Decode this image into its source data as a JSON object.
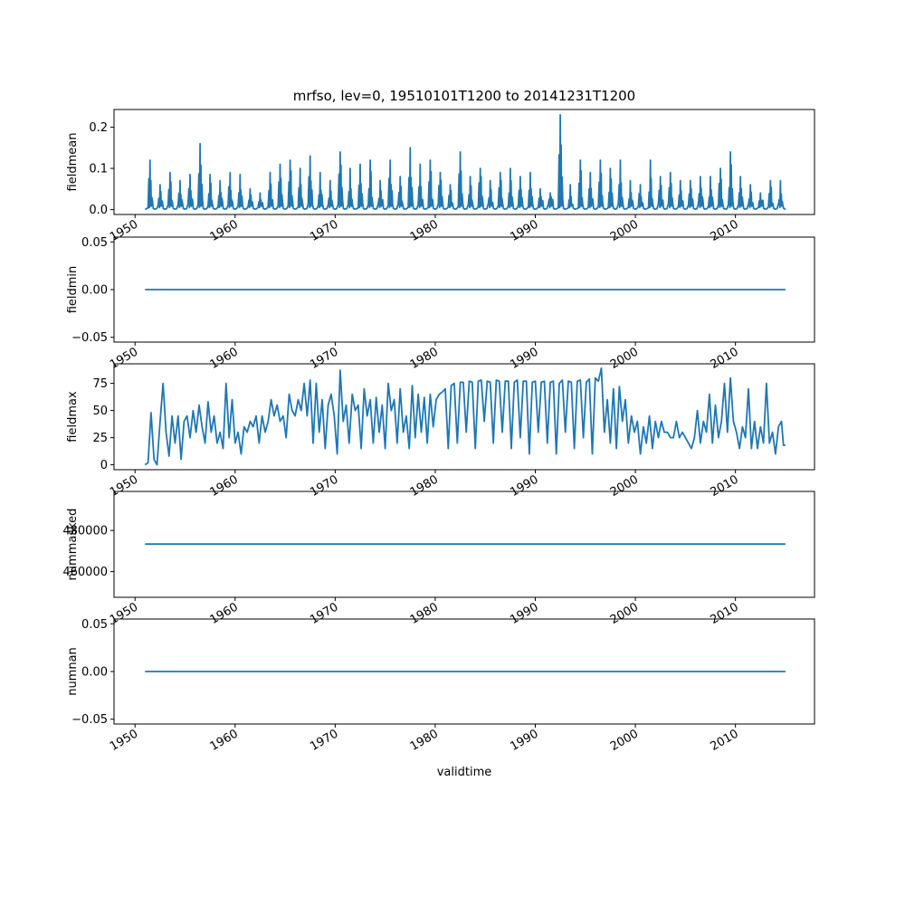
{
  "chart_data": {
    "title": "mrfso, lev=0, 19510101T1200 to 20141231T1200",
    "xlabel": "validtime",
    "line_color": "#1f77b4",
    "x_ticks": [
      1950,
      1960,
      1970,
      1980,
      1990,
      2000,
      2010
    ],
    "x_tick_labels": [
      "1950",
      "1960",
      "1970",
      "1980",
      "1990",
      "2000",
      "2010"
    ],
    "xlim": [
      1947.9,
      2017.9
    ],
    "x_range": [
      1951.0,
      2015.0
    ],
    "subplots": [
      {
        "type": "line",
        "name": "fieldmean",
        "ylabel": "fieldmean",
        "ylim": [
          -0.012,
          0.243
        ],
        "yticks": [
          0.0,
          0.1,
          0.2
        ],
        "yticklabels": [
          "0.0",
          "0.1",
          "0.2"
        ],
        "kind": "seasonal_spikes",
        "peaks": [
          [
            1951.5,
            0.12
          ],
          [
            1952.5,
            0.06
          ],
          [
            1953.5,
            0.09
          ],
          [
            1954.5,
            0.07
          ],
          [
            1955.5,
            0.085
          ],
          [
            1956.5,
            0.16
          ],
          [
            1957.5,
            0.085
          ],
          [
            1958.5,
            0.07
          ],
          [
            1959.5,
            0.09
          ],
          [
            1960.5,
            0.085
          ],
          [
            1961.5,
            0.05
          ],
          [
            1962.5,
            0.04
          ],
          [
            1963.5,
            0.09
          ],
          [
            1964.5,
            0.11
          ],
          [
            1965.5,
            0.12
          ],
          [
            1966.5,
            0.1
          ],
          [
            1967.5,
            0.13
          ],
          [
            1968.5,
            0.09
          ],
          [
            1969.5,
            0.07
          ],
          [
            1970.5,
            0.14
          ],
          [
            1971.5,
            0.1
          ],
          [
            1972.5,
            0.11
          ],
          [
            1973.5,
            0.12
          ],
          [
            1974.5,
            0.07
          ],
          [
            1975.5,
            0.12
          ],
          [
            1976.5,
            0.08
          ],
          [
            1977.5,
            0.15
          ],
          [
            1978.5,
            0.11
          ],
          [
            1979.5,
            0.12
          ],
          [
            1980.5,
            0.09
          ],
          [
            1981.5,
            0.06
          ],
          [
            1982.5,
            0.14
          ],
          [
            1983.5,
            0.08
          ],
          [
            1984.5,
            0.1
          ],
          [
            1985.5,
            0.07
          ],
          [
            1986.5,
            0.09
          ],
          [
            1987.5,
            0.1
          ],
          [
            1988.5,
            0.08
          ],
          [
            1989.5,
            0.09
          ],
          [
            1990.5,
            0.05
          ],
          [
            1991.5,
            0.04
          ],
          [
            1992.5,
            0.23
          ],
          [
            1993.5,
            0.06
          ],
          [
            1994.5,
            0.12
          ],
          [
            1995.5,
            0.09
          ],
          [
            1996.5,
            0.12
          ],
          [
            1997.5,
            0.1
          ],
          [
            1998.5,
            0.12
          ],
          [
            1999.5,
            0.07
          ],
          [
            2000.5,
            0.06
          ],
          [
            2001.5,
            0.12
          ],
          [
            2002.5,
            0.08
          ],
          [
            2003.5,
            0.09
          ],
          [
            2004.5,
            0.07
          ],
          [
            2005.5,
            0.07
          ],
          [
            2006.5,
            0.08
          ],
          [
            2007.5,
            0.08
          ],
          [
            2008.5,
            0.1
          ],
          [
            2009.5,
            0.14
          ],
          [
            2010.5,
            0.08
          ],
          [
            2011.5,
            0.06
          ],
          [
            2012.5,
            0.04
          ],
          [
            2013.5,
            0.07
          ],
          [
            2014.5,
            0.07
          ]
        ]
      },
      {
        "type": "line",
        "name": "fieldmin",
        "ylabel": "fieldmin",
        "ylim": [
          -0.055,
          0.055
        ],
        "yticks": [
          -0.05,
          0.0,
          0.05
        ],
        "yticklabels": [
          "−0.05",
          "0.00",
          "0.05"
        ],
        "kind": "constant",
        "value": 0.0
      },
      {
        "type": "line",
        "name": "fieldmax",
        "ylabel": "fieldmax",
        "ylim": [
          -4.5,
          93
        ],
        "yticks": [
          0,
          25,
          50,
          75
        ],
        "yticklabels": [
          "0",
          "25",
          "50",
          "75"
        ],
        "kind": "noisy",
        "points": [
          [
            1951.0,
            0
          ],
          [
            1951.3,
            2
          ],
          [
            1951.6,
            48
          ],
          [
            1951.9,
            5
          ],
          [
            1952.2,
            0
          ],
          [
            1952.5,
            40
          ],
          [
            1952.8,
            75
          ],
          [
            1953.1,
            30
          ],
          [
            1953.4,
            8
          ],
          [
            1953.7,
            45
          ],
          [
            1954.0,
            20
          ],
          [
            1954.3,
            45
          ],
          [
            1954.6,
            5
          ],
          [
            1954.9,
            40
          ],
          [
            1955.2,
            45
          ],
          [
            1955.5,
            25
          ],
          [
            1955.8,
            50
          ],
          [
            1956.1,
            30
          ],
          [
            1956.4,
            55
          ],
          [
            1956.7,
            35
          ],
          [
            1957.0,
            20
          ],
          [
            1957.3,
            58
          ],
          [
            1957.6,
            30
          ],
          [
            1957.9,
            45
          ],
          [
            1958.2,
            20
          ],
          [
            1958.5,
            30
          ],
          [
            1958.8,
            15
          ],
          [
            1959.1,
            75
          ],
          [
            1959.4,
            25
          ],
          [
            1959.7,
            60
          ],
          [
            1960.0,
            20
          ],
          [
            1960.3,
            30
          ],
          [
            1960.6,
            10
          ],
          [
            1960.9,
            35
          ],
          [
            1961.2,
            30
          ],
          [
            1961.5,
            40
          ],
          [
            1961.8,
            35
          ],
          [
            1962.1,
            45
          ],
          [
            1962.4,
            20
          ],
          [
            1962.7,
            45
          ],
          [
            1963.0,
            30
          ],
          [
            1963.3,
            40
          ],
          [
            1963.6,
            60
          ],
          [
            1963.9,
            45
          ],
          [
            1964.2,
            55
          ],
          [
            1964.5,
            40
          ],
          [
            1964.8,
            45
          ],
          [
            1965.1,
            25
          ],
          [
            1965.4,
            65
          ],
          [
            1965.7,
            50
          ],
          [
            1966.0,
            45
          ],
          [
            1966.3,
            60
          ],
          [
            1966.6,
            50
          ],
          [
            1966.9,
            75
          ],
          [
            1967.2,
            45
          ],
          [
            1967.5,
            78
          ],
          [
            1967.8,
            20
          ],
          [
            1968.1,
            75
          ],
          [
            1968.4,
            30
          ],
          [
            1968.7,
            60
          ],
          [
            1969.0,
            15
          ],
          [
            1969.3,
            55
          ],
          [
            1969.6,
            65
          ],
          [
            1969.9,
            45
          ],
          [
            1970.2,
            10
          ],
          [
            1970.5,
            87
          ],
          [
            1970.8,
            40
          ],
          [
            1971.1,
            55
          ],
          [
            1971.4,
            20
          ],
          [
            1971.7,
            65
          ],
          [
            1972.0,
            50
          ],
          [
            1972.3,
            55
          ],
          [
            1972.6,
            15
          ],
          [
            1972.9,
            70
          ],
          [
            1973.2,
            45
          ],
          [
            1973.5,
            60
          ],
          [
            1973.8,
            20
          ],
          [
            1974.1,
            62
          ],
          [
            1974.4,
            30
          ],
          [
            1974.7,
            55
          ],
          [
            1975.0,
            15
          ],
          [
            1975.3,
            75
          ],
          [
            1975.6,
            50
          ],
          [
            1975.9,
            60
          ],
          [
            1976.2,
            20
          ],
          [
            1976.5,
            70
          ],
          [
            1976.8,
            30
          ],
          [
            1977.1,
            45
          ],
          [
            1977.4,
            15
          ],
          [
            1977.7,
            73
          ],
          [
            1978.0,
            25
          ],
          [
            1978.3,
            65
          ],
          [
            1978.6,
            30
          ],
          [
            1978.9,
            62
          ],
          [
            1979.2,
            20
          ],
          [
            1979.5,
            65
          ],
          [
            1979.8,
            35
          ],
          [
            1980.1,
            60
          ],
          [
            1980.4,
            65
          ],
          [
            1980.7,
            67
          ],
          [
            1981.0,
            70
          ],
          [
            1981.3,
            15
          ],
          [
            1981.6,
            73
          ],
          [
            1981.9,
            75
          ],
          [
            1982.2,
            20
          ],
          [
            1982.5,
            76
          ],
          [
            1982.8,
            76
          ],
          [
            1983.1,
            30
          ],
          [
            1983.4,
            77
          ],
          [
            1983.7,
            76
          ],
          [
            1984.0,
            15
          ],
          [
            1984.3,
            77
          ],
          [
            1984.6,
            78
          ],
          [
            1984.9,
            40
          ],
          [
            1985.2,
            77
          ],
          [
            1985.5,
            76
          ],
          [
            1985.8,
            20
          ],
          [
            1986.1,
            78
          ],
          [
            1986.4,
            77
          ],
          [
            1986.7,
            30
          ],
          [
            1987.0,
            77
          ],
          [
            1987.3,
            77
          ],
          [
            1987.6,
            15
          ],
          [
            1987.9,
            76
          ],
          [
            1988.2,
            78
          ],
          [
            1988.5,
            25
          ],
          [
            1988.8,
            77
          ],
          [
            1989.1,
            77
          ],
          [
            1989.4,
            10
          ],
          [
            1989.7,
            76
          ],
          [
            1990.0,
            77
          ],
          [
            1990.3,
            30
          ],
          [
            1990.6,
            76
          ],
          [
            1990.9,
            77
          ],
          [
            1991.2,
            20
          ],
          [
            1991.5,
            76
          ],
          [
            1991.8,
            77
          ],
          [
            1992.1,
            10
          ],
          [
            1992.4,
            75
          ],
          [
            1992.7,
            78
          ],
          [
            1993.0,
            30
          ],
          [
            1993.3,
            77
          ],
          [
            1993.6,
            76
          ],
          [
            1993.9,
            15
          ],
          [
            1994.2,
            77
          ],
          [
            1994.5,
            78
          ],
          [
            1994.8,
            25
          ],
          [
            1995.1,
            76
          ],
          [
            1995.4,
            79
          ],
          [
            1995.7,
            10
          ],
          [
            1996.0,
            80
          ],
          [
            1996.3,
            77
          ],
          [
            1996.6,
            89
          ],
          [
            1996.9,
            30
          ],
          [
            1997.2,
            60
          ],
          [
            1997.5,
            20
          ],
          [
            1997.8,
            70
          ],
          [
            1998.1,
            15
          ],
          [
            1998.4,
            72
          ],
          [
            1998.7,
            40
          ],
          [
            1999.0,
            60
          ],
          [
            1999.3,
            20
          ],
          [
            1999.6,
            45
          ],
          [
            1999.9,
            30
          ],
          [
            2000.2,
            40
          ],
          [
            2000.5,
            10
          ],
          [
            2000.8,
            35
          ],
          [
            2001.1,
            20
          ],
          [
            2001.4,
            45
          ],
          [
            2001.7,
            15
          ],
          [
            2002.0,
            40
          ],
          [
            2002.3,
            25
          ],
          [
            2002.6,
            40
          ],
          [
            2002.9,
            30
          ],
          [
            2003.2,
            30
          ],
          [
            2003.5,
            25
          ],
          [
            2003.8,
            25
          ],
          [
            2004.1,
            40
          ],
          [
            2004.4,
            25
          ],
          [
            2004.7,
            30
          ],
          [
            2005.0,
            25
          ],
          [
            2005.3,
            20
          ],
          [
            2005.6,
            15
          ],
          [
            2005.9,
            25
          ],
          [
            2006.2,
            50
          ],
          [
            2006.5,
            20
          ],
          [
            2006.8,
            40
          ],
          [
            2007.1,
            30
          ],
          [
            2007.4,
            65
          ],
          [
            2007.7,
            20
          ],
          [
            2008.0,
            55
          ],
          [
            2008.3,
            25
          ],
          [
            2008.6,
            40
          ],
          [
            2008.9,
            75
          ],
          [
            2009.2,
            30
          ],
          [
            2009.5,
            80
          ],
          [
            2009.8,
            40
          ],
          [
            2010.1,
            30
          ],
          [
            2010.4,
            15
          ],
          [
            2010.7,
            35
          ],
          [
            2011.0,
            25
          ],
          [
            2011.3,
            70
          ],
          [
            2011.6,
            15
          ],
          [
            2011.9,
            40
          ],
          [
            2012.2,
            15
          ],
          [
            2012.5,
            35
          ],
          [
            2012.8,
            20
          ],
          [
            2013.1,
            75
          ],
          [
            2013.4,
            20
          ],
          [
            2013.7,
            30
          ],
          [
            2014.0,
            10
          ],
          [
            2014.3,
            35
          ],
          [
            2014.6,
            40
          ],
          [
            2014.8,
            18
          ],
          [
            2015.0,
            18
          ]
        ]
      },
      {
        "type": "line",
        "name": "nummasked",
        "ylabel": "nummasked",
        "ylim": [
          447500,
          499000
        ],
        "yticks": [
          460000,
          480000
        ],
        "yticklabels": [
          "460000",
          "480000"
        ],
        "kind": "constant",
        "value": 473400
      },
      {
        "type": "line",
        "name": "numnan",
        "ylabel": "numnan",
        "ylim": [
          -0.055,
          0.055
        ],
        "yticks": [
          -0.05,
          0.0,
          0.05
        ],
        "yticklabels": [
          "−0.05",
          "0.00",
          "0.05"
        ],
        "kind": "constant",
        "value": 0.0
      }
    ]
  }
}
